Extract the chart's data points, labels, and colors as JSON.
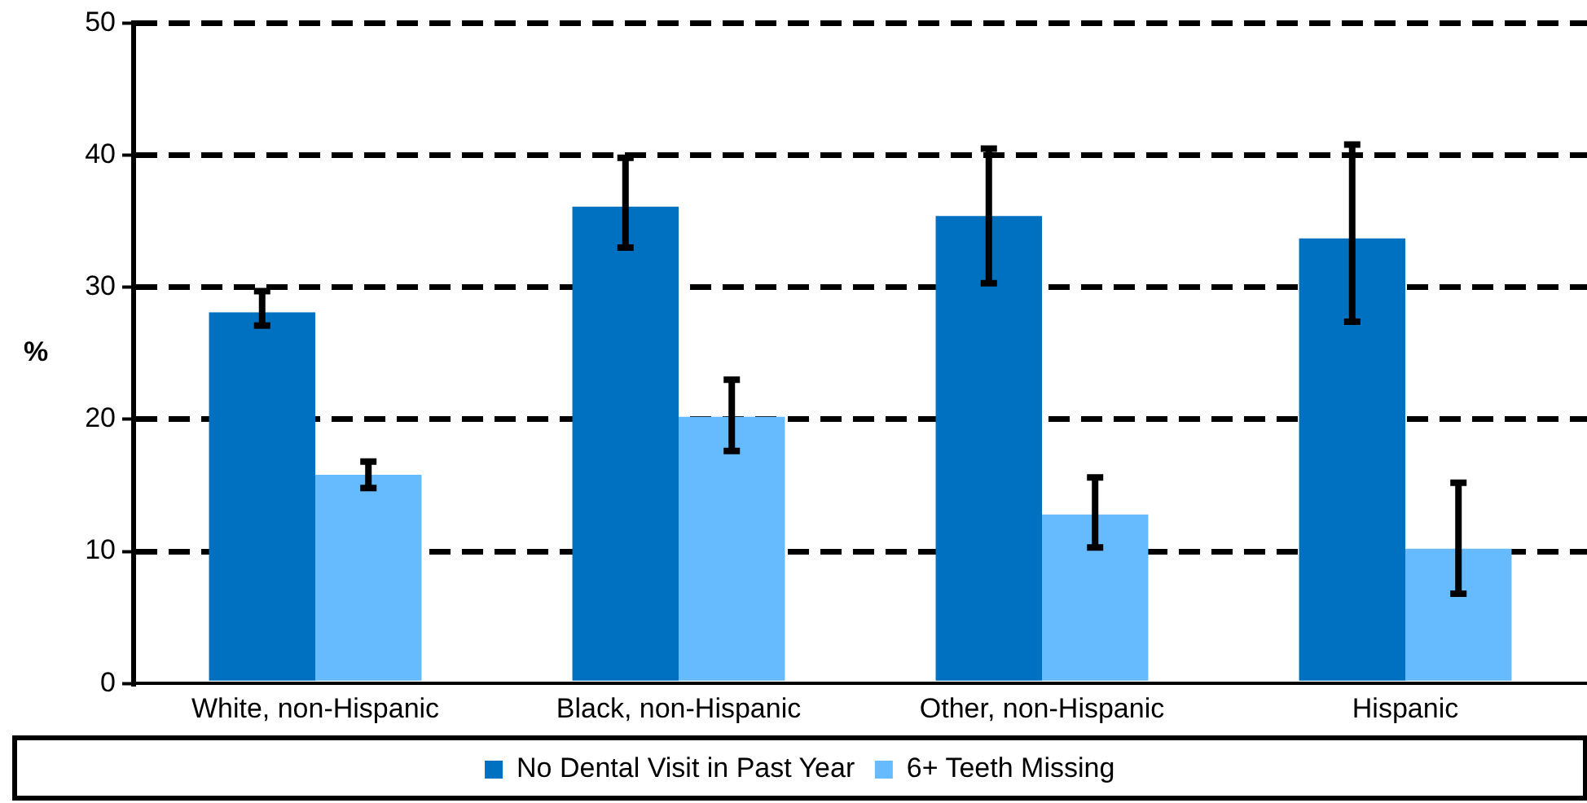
{
  "chart_data": {
    "type": "bar",
    "ylabel": "%",
    "categories": [
      "White, non-Hispanic",
      "Black, non-Hispanic",
      "Other, non-Hispanic",
      "Hispanic"
    ],
    "series": [
      {
        "name": "No Dental Visit in Past Year",
        "color": "#0070c0",
        "values": [
          28.1,
          36.1,
          35.4,
          33.7
        ],
        "errors": [
          [
            27.1,
            29.7
          ],
          [
            33.0,
            39.8
          ],
          [
            30.3,
            40.5
          ],
          [
            27.4,
            40.8
          ]
        ]
      },
      {
        "name": "6+ Teeth Missing",
        "color": "#66bbff",
        "values": [
          15.8,
          20.2,
          12.8,
          10.2
        ],
        "errors": [
          [
            14.8,
            16.8
          ],
          [
            17.6,
            23.0
          ],
          [
            10.3,
            15.6
          ],
          [
            6.8,
            15.2
          ]
        ]
      }
    ],
    "ylim": [
      0,
      50
    ],
    "yticks": [
      0,
      10,
      20,
      30,
      40,
      50
    ],
    "grid": "y",
    "legend": "bottom"
  }
}
